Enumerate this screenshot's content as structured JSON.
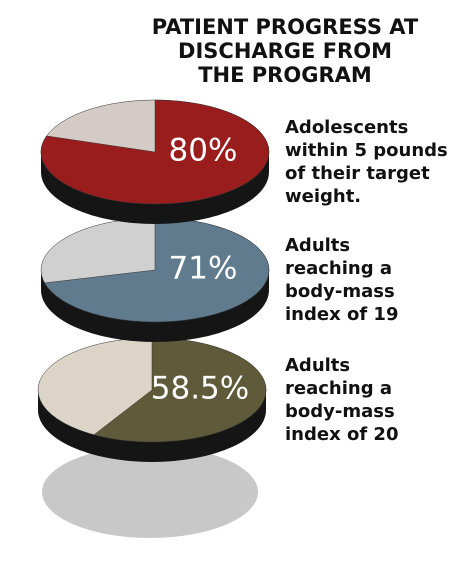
{
  "title": [
    "PATIENT PROGRESS AT",
    "DISCHARGE FROM",
    "THE PROGRAM"
  ],
  "chart_data": [
    {
      "type": "pie",
      "values": [
        80
      ],
      "value_labels": [
        "80%"
      ],
      "color": "#9a1d1d",
      "rest_color": "#d4cbc6",
      "caption": [
        "Adolescents",
        "within 5 pounds",
        "of their target",
        "weight."
      ]
    },
    {
      "type": "pie",
      "values": [
        71
      ],
      "value_labels": [
        "71%"
      ],
      "color": "#5f7b8d",
      "rest_color": "#d0d0d0",
      "caption": [
        "Adults",
        "reaching a",
        "body-mass",
        "index of 19"
      ]
    },
    {
      "type": "pie",
      "values": [
        58.5
      ],
      "value_labels": [
        "58.5%"
      ],
      "color": "#5e5a3a",
      "rest_color": "#ddd4c8",
      "caption": [
        "Adults",
        "reaching a",
        "body-mass",
        "index of 20"
      ]
    }
  ]
}
